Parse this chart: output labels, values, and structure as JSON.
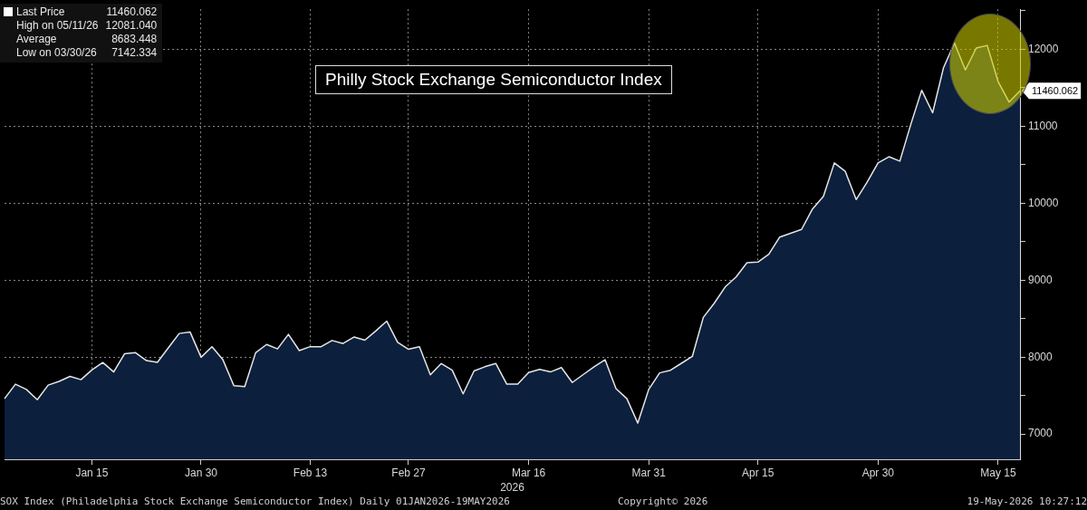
{
  "chart_data": {
    "type": "area",
    "title": "Philly Stock Exchange Semiconductor Index",
    "xlabel": "2026",
    "categories": [
      null,
      null,
      null,
      null,
      null,
      null,
      null,
      null,
      "Jan 15",
      null,
      null,
      null,
      null,
      null,
      null,
      null,
      null,
      null,
      "Jan 30",
      null,
      null,
      null,
      null,
      null,
      null,
      null,
      null,
      null,
      "Feb 13",
      null,
      null,
      null,
      null,
      null,
      null,
      null,
      null,
      "Feb 27",
      null,
      null,
      null,
      null,
      null,
      null,
      null,
      null,
      null,
      null,
      "Mar 16",
      null,
      null,
      null,
      null,
      null,
      null,
      null,
      null,
      null,
      null,
      "Mar 31",
      null,
      null,
      null,
      null,
      null,
      null,
      null,
      null,
      null,
      "Apr 15",
      null,
      null,
      null,
      null,
      null,
      null,
      null,
      null,
      null,
      null,
      "Apr 30",
      null,
      null,
      null,
      null,
      null,
      null,
      null,
      null,
      null,
      null,
      "May 15",
      null,
      null
    ],
    "series": [
      {
        "color": "#0c1f3c",
        "values": [
          7460,
          7648,
          7580,
          7447,
          7636,
          7685,
          7750,
          7707,
          7833,
          7930,
          7807,
          8045,
          8057,
          7955,
          7932,
          8120,
          8307,
          8325,
          7998,
          8134,
          7966,
          7630,
          7616,
          8057,
          8164,
          8107,
          8295,
          8085,
          8136,
          8136,
          8216,
          8177,
          8261,
          8220,
          8340,
          8468,
          8193,
          8102,
          8136,
          7770,
          7916,
          7830,
          7523,
          7820,
          7875,
          7916,
          7648,
          7648,
          7800,
          7841,
          7807,
          7864,
          7670,
          7773,
          7875,
          7966,
          7591,
          7459,
          7142.334,
          7580,
          7795,
          7830,
          7920,
          8011,
          8516,
          8700,
          8911,
          9041,
          9227,
          9235,
          9336,
          9560,
          9609,
          9659,
          9925,
          10088,
          10523,
          10413,
          10047,
          10272,
          10523,
          10603,
          10546,
          11023,
          11467,
          11175,
          11761,
          12081.04,
          11731,
          12016,
          12050,
          11580,
          11314,
          11460.062
        ],
        "value_labels": [
          null,
          null,
          null,
          null,
          null,
          null,
          null,
          null,
          null,
          null,
          null,
          null,
          null,
          null,
          null,
          null,
          null,
          null,
          null,
          null,
          null,
          null,
          null,
          null,
          null,
          null,
          null,
          null,
          null,
          null,
          null,
          null,
          null,
          null,
          null,
          null,
          null,
          null,
          null,
          null,
          null,
          null,
          null,
          null,
          null,
          null,
          null,
          null,
          null,
          null,
          null,
          null,
          null,
          null,
          null,
          null,
          null,
          null,
          null,
          null,
          null,
          null,
          null,
          null,
          null,
          null,
          null,
          null,
          null,
          null,
          null,
          null,
          null,
          null,
          null,
          null,
          null,
          null,
          null,
          null,
          null,
          null,
          null,
          null,
          null,
          null,
          null,
          null,
          null,
          null,
          null,
          null,
          null,
          "11460.062"
        ]
      }
    ],
    "ylim": [
      6670,
      12520
    ],
    "yticks": [
      {
        "value": 7000,
        "label": "7000"
      },
      {
        "value": 7500,
        "label": null
      },
      {
        "value": 8000,
        "label": "8000"
      },
      {
        "value": 8500,
        "label": null
      },
      {
        "value": 9000,
        "label": "9000"
      },
      {
        "value": 9500,
        "label": null
      },
      {
        "value": 10000,
        "label": "10000"
      },
      {
        "value": 10500,
        "label": null
      },
      {
        "value": 11000,
        "label": "11000"
      },
      {
        "value": 11500,
        "label": null
      },
      {
        "value": 12000,
        "label": "12000"
      },
      {
        "value": 12500,
        "label": null
      }
    ],
    "grid": true,
    "legend": false,
    "marker": "none",
    "annotations": [
      "Last Price",
      "11460.062",
      "High on 05/11/26",
      "12081.040",
      "Average",
      "8683.448",
      "Low on 03/30/26",
      "7142.334",
      "SOX Index (Philadelphia Stock Exchange Semiconductor Index) Daily 01JAN2026-19MAY2026",
      "Copyright© 2026",
      "19-May-2026 10:27:12"
    ]
  }
}
